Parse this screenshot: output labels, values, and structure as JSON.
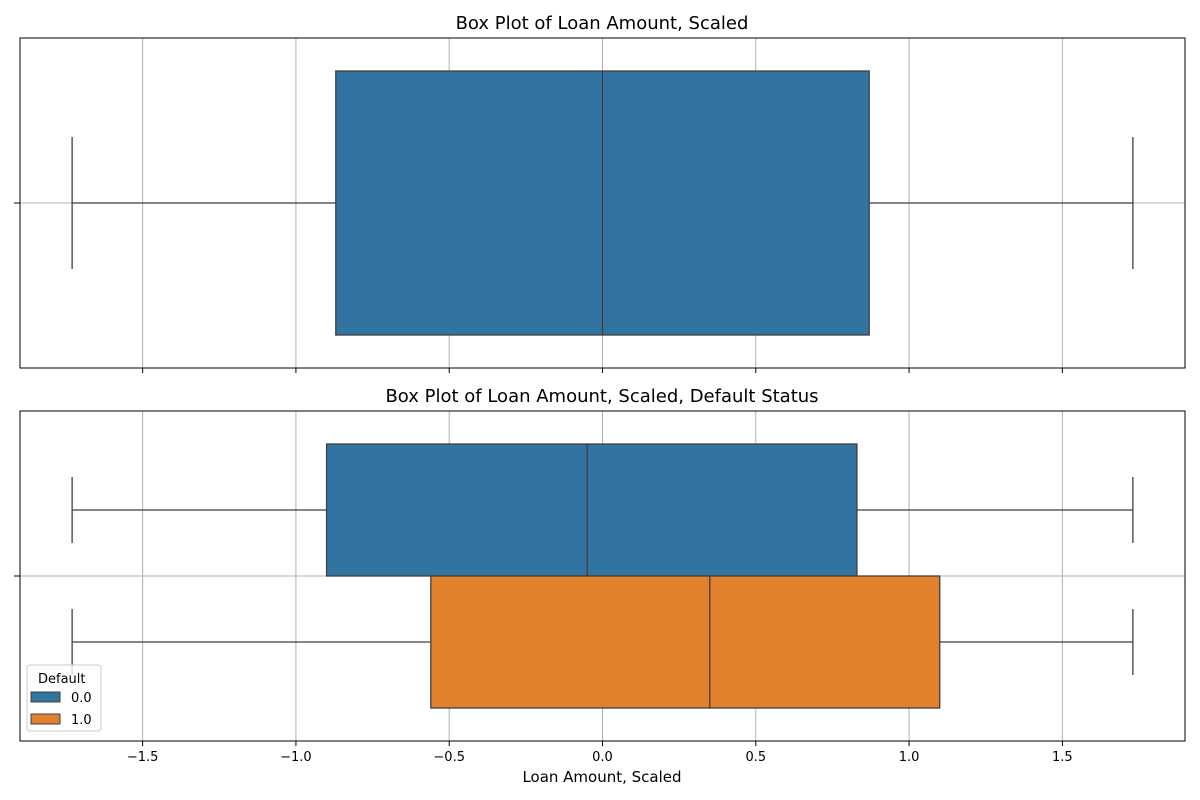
{
  "chart_data": [
    {
      "type": "box",
      "orientation": "horizontal",
      "title": "Box Plot of Loan Amount, Scaled",
      "xlabel": "",
      "xlim": [
        -1.9,
        1.9
      ],
      "grid": true,
      "boxes": [
        {
          "name": "",
          "color": "#3274a1",
          "whisker_low": -1.73,
          "q1": -0.87,
          "median": 0.0,
          "q3": 0.87,
          "whisker_high": 1.73
        }
      ]
    },
    {
      "type": "box",
      "orientation": "horizontal",
      "title": "Box Plot of Loan Amount, Scaled, Default Status",
      "xlabel": "Loan Amount, Scaled",
      "xlim": [
        -1.9,
        1.9
      ],
      "xticks": [
        -1.5,
        -1.0,
        -0.5,
        0.0,
        0.5,
        1.0,
        1.5
      ],
      "xtick_labels": [
        "−1.5",
        "−1.0",
        "−0.5",
        "0.0",
        "0.5",
        "1.0",
        "1.5"
      ],
      "grid": true,
      "legend": {
        "title": "Default",
        "placement": "lower-left"
      },
      "boxes": [
        {
          "name": "0.0",
          "color": "#3274a1",
          "whisker_low": -1.73,
          "q1": -0.9,
          "median": -0.05,
          "q3": 0.83,
          "whisker_high": 1.73
        },
        {
          "name": "1.0",
          "color": "#e1812c",
          "whisker_low": -1.73,
          "q1": -0.56,
          "median": 0.35,
          "q3": 1.1,
          "whisker_high": 1.73
        }
      ]
    }
  ]
}
